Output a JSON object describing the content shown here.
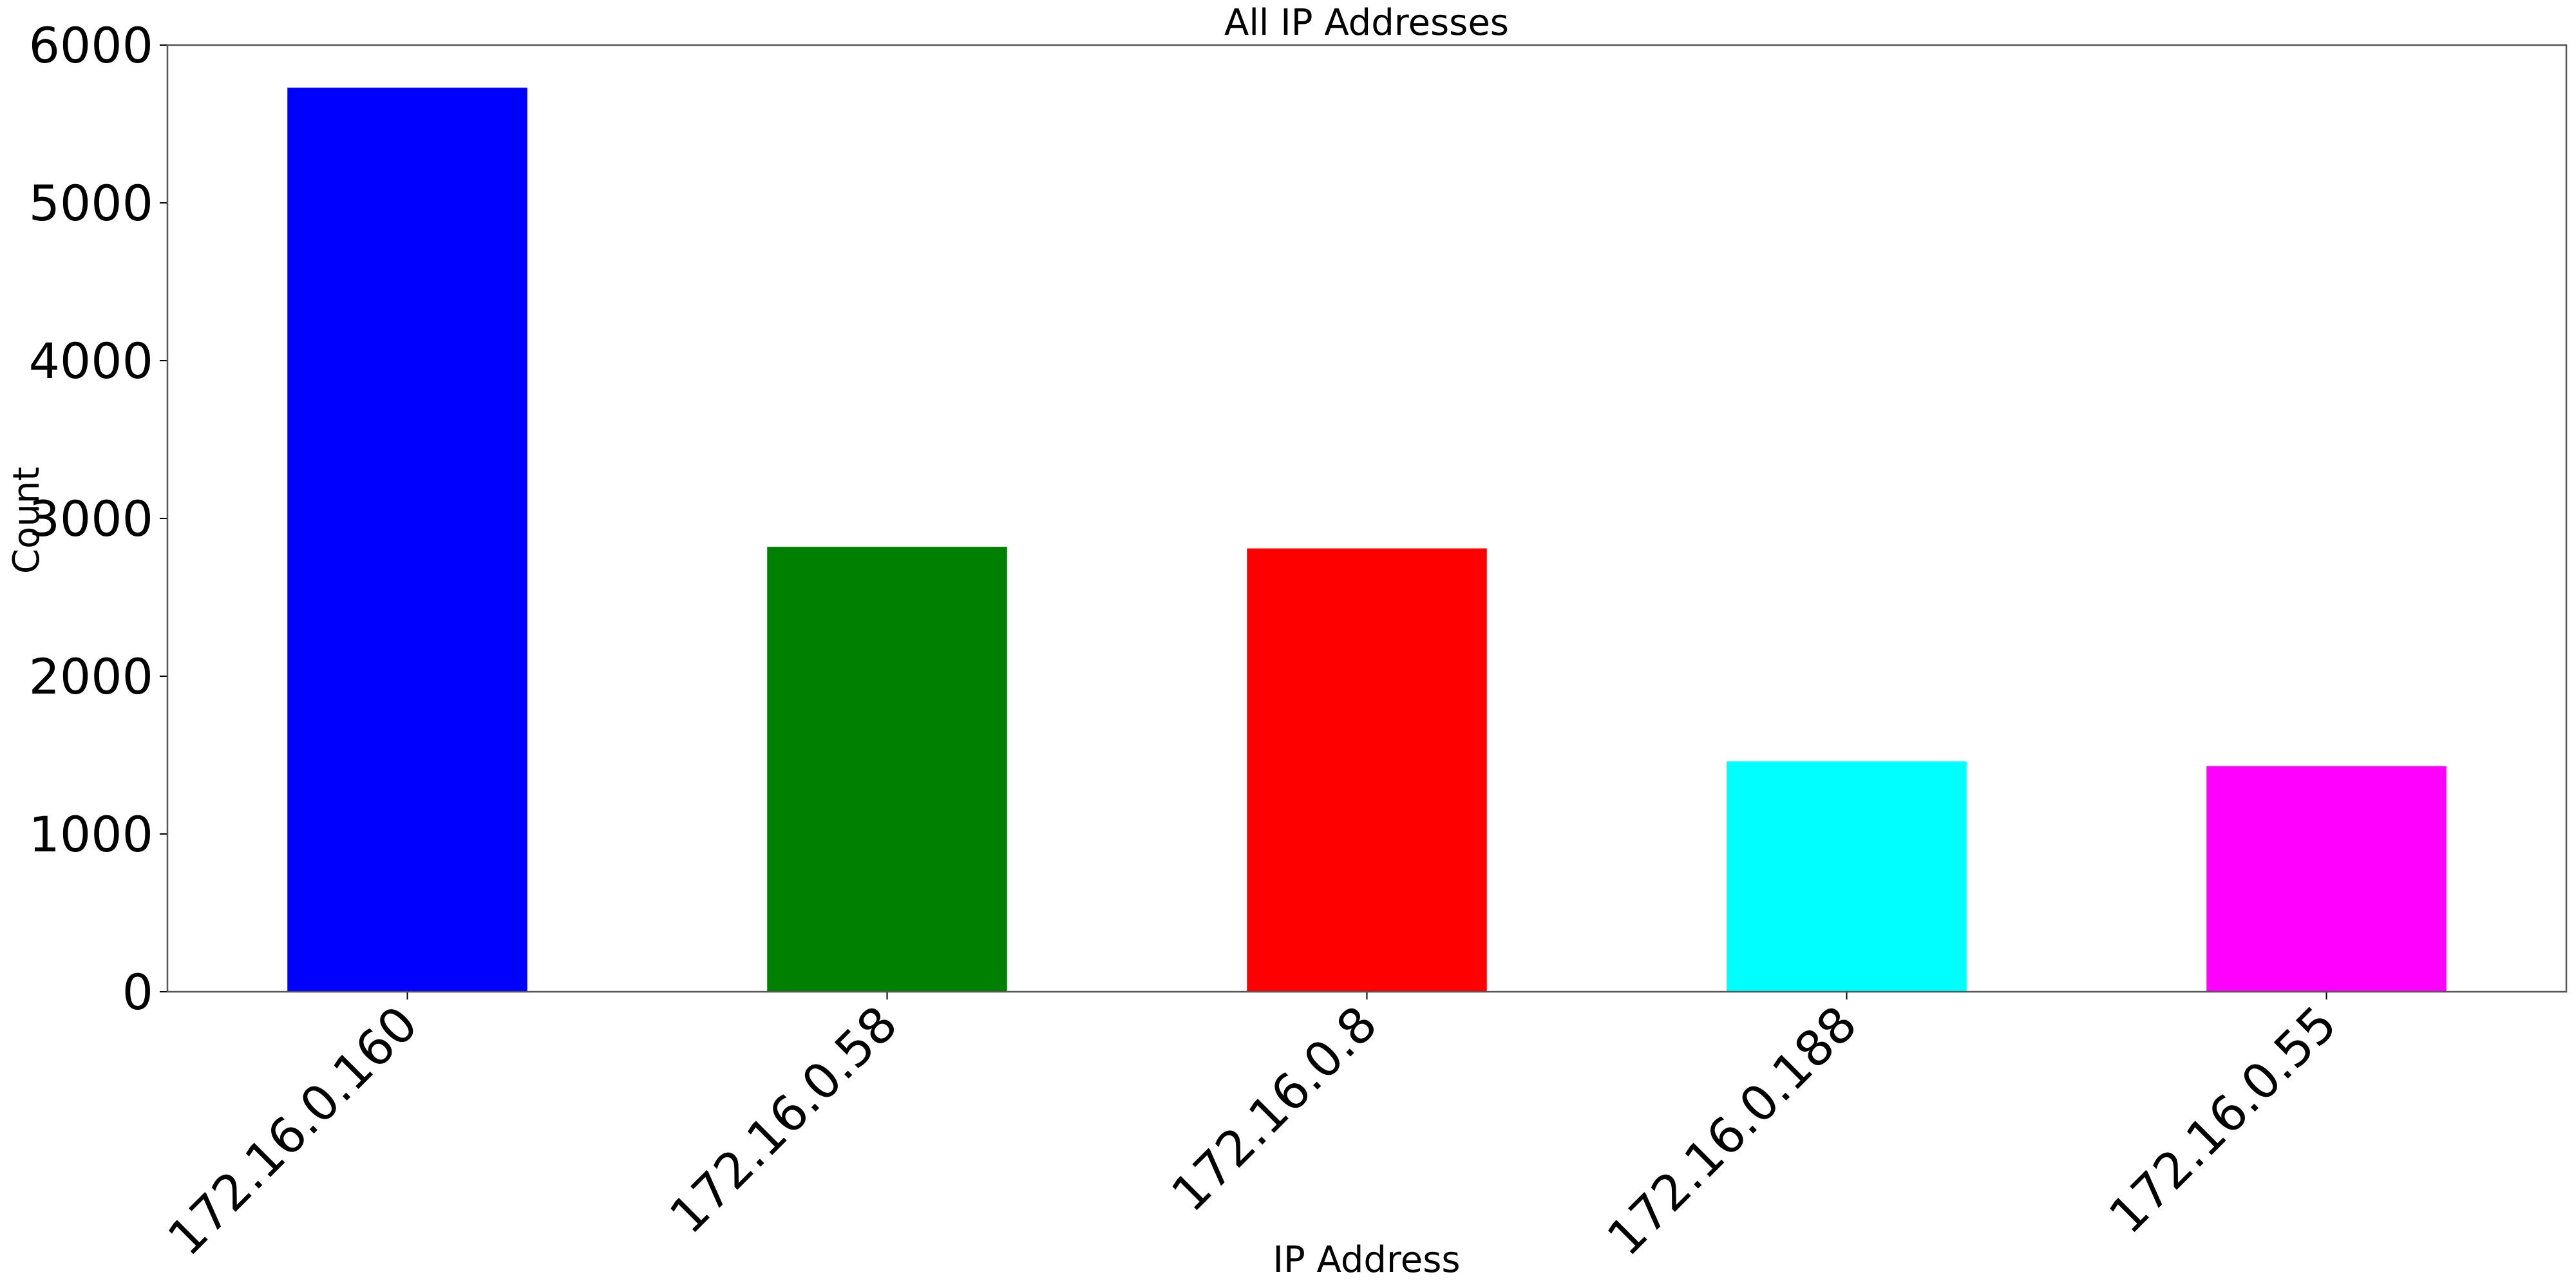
{
  "chart_data": {
    "type": "bar",
    "title": "All IP Addresses",
    "xlabel": "IP Address",
    "ylabel": "Count",
    "categories": [
      "172.16.0.160",
      "172.16.0.58",
      "172.16.0.8",
      "172.16.0.188",
      "172.16.0.55"
    ],
    "values": [
      5730,
      2820,
      2810,
      1460,
      1430
    ],
    "colors": [
      "#0000ff",
      "#008000",
      "#ff0000",
      "#00ffff",
      "#ff00ff"
    ],
    "ylim": [
      0,
      6000
    ],
    "yticks": [
      0,
      1000,
      2000,
      3000,
      4000,
      5000,
      6000
    ],
    "grid": false,
    "legend": "none"
  }
}
